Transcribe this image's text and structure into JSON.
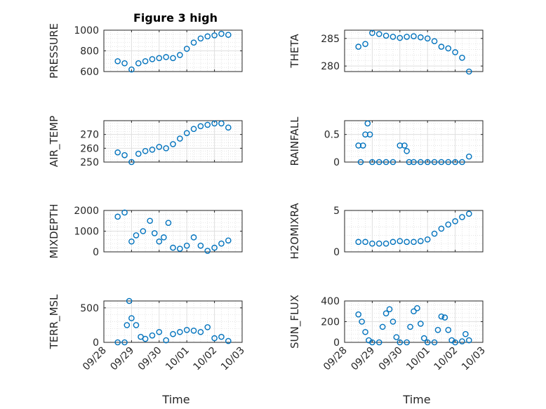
{
  "figure_title": "Figure 3 high",
  "marker_color": "#0072BD",
  "x_axis": {
    "label": "Time",
    "range": [
      "09/28",
      "10/03"
    ],
    "tick_labels": [
      "09/28",
      "09/29",
      "09/30",
      "10/01",
      "10/02",
      "10/03"
    ]
  },
  "chart_data": [
    {
      "type": "scatter",
      "panel": "pressure",
      "title": "Figure 3 high",
      "ylabel": "PRESSURE",
      "ylim": [
        600,
        1000
      ],
      "yticks": [
        600,
        800,
        1000
      ],
      "grid": true,
      "minor_grid": true,
      "x": [
        "09/28 12:00",
        "09/28 18:00",
        "09/29 00:00",
        "09/29 06:00",
        "09/29 12:00",
        "09/29 18:00",
        "09/30 00:00",
        "09/30 06:00",
        "09/30 12:00",
        "09/30 18:00",
        "10/01 00:00",
        "10/01 06:00",
        "10/01 12:00",
        "10/01 18:00",
        "10/02 00:00",
        "10/02 06:00",
        "10/02 12:00"
      ],
      "y": [
        700,
        680,
        620,
        680,
        700,
        720,
        730,
        740,
        730,
        760,
        820,
        880,
        920,
        940,
        950,
        965,
        955
      ]
    },
    {
      "type": "scatter",
      "panel": "theta",
      "ylabel": "THETA",
      "ylim": [
        279,
        286.5
      ],
      "yticks": [
        280,
        285
      ],
      "grid": true,
      "minor_grid": true,
      "x": [
        "09/28 12:00",
        "09/28 18:00",
        "09/29 00:00",
        "09/29 06:00",
        "09/29 12:00",
        "09/29 18:00",
        "09/30 00:00",
        "09/30 06:00",
        "09/30 12:00",
        "09/30 18:00",
        "10/01 00:00",
        "10/01 06:00",
        "10/01 12:00",
        "10/01 18:00",
        "10/02 00:00",
        "10/02 06:00",
        "10/02 12:00"
      ],
      "y": [
        283.5,
        284,
        286,
        285.8,
        285.5,
        285.3,
        285.1,
        285.3,
        285.4,
        285.2,
        285.0,
        284.5,
        283.5,
        283.2,
        282.5,
        281.5,
        279
      ]
    },
    {
      "type": "scatter",
      "panel": "air_temp",
      "ylabel": "AIR_TEMP",
      "ylim": [
        250,
        280
      ],
      "yticks": [
        250,
        260,
        270
      ],
      "grid": true,
      "minor_grid": true,
      "x": [
        "09/28 12:00",
        "09/28 18:00",
        "09/29 00:00",
        "09/29 06:00",
        "09/29 12:00",
        "09/29 18:00",
        "09/30 00:00",
        "09/30 06:00",
        "09/30 12:00",
        "09/30 18:00",
        "10/01 00:00",
        "10/01 06:00",
        "10/01 12:00",
        "10/01 18:00",
        "10/02 00:00",
        "10/02 06:00",
        "10/02 12:00"
      ],
      "y": [
        257,
        255,
        250,
        256,
        258,
        259,
        261,
        260,
        263,
        267,
        271,
        274,
        276,
        277,
        278,
        278,
        275
      ]
    },
    {
      "type": "scatter",
      "panel": "rainfall",
      "ylabel": "RAINFALL",
      "ylim": [
        0,
        0.75
      ],
      "yticks": [
        0,
        0.5
      ],
      "grid": true,
      "minor_grid": true,
      "x": [
        "09/28 12:00",
        "09/28 14:00",
        "09/28 16:00",
        "09/28 18:00",
        "09/28 20:00",
        "09/28 22:00",
        "09/29 00:00",
        "09/29 06:00",
        "09/29 12:00",
        "09/29 18:00",
        "09/30 00:00",
        "09/30 04:00",
        "09/30 06:00",
        "09/30 08:00",
        "09/30 12:00",
        "09/30 18:00",
        "10/01 00:00",
        "10/01 06:00",
        "10/01 12:00",
        "10/01 18:00",
        "10/02 00:00",
        "10/02 06:00",
        "10/02 12:00"
      ],
      "y": [
        0.3,
        0,
        0.3,
        0.5,
        0.7,
        0.5,
        0,
        0,
        0,
        0,
        0.3,
        0.3,
        0.2,
        0,
        0,
        0,
        0,
        0,
        0,
        0,
        0,
        0,
        0.1
      ]
    },
    {
      "type": "scatter",
      "panel": "mixdepth",
      "ylabel": "MIXDEPTH",
      "ylim": [
        0,
        2000
      ],
      "yticks": [
        0,
        1000,
        2000
      ],
      "grid": true,
      "minor_grid": true,
      "x": [
        "09/28 12:00",
        "09/28 18:00",
        "09/29 00:00",
        "09/29 04:00",
        "09/29 10:00",
        "09/29 16:00",
        "09/29 20:00",
        "09/30 00:00",
        "09/30 04:00",
        "09/30 08:00",
        "09/30 12:00",
        "09/30 18:00",
        "10/01 00:00",
        "10/01 06:00",
        "10/01 12:00",
        "10/01 18:00",
        "10/02 00:00",
        "10/02 06:00",
        "10/02 12:00"
      ],
      "y": [
        1700,
        1900,
        500,
        800,
        1000,
        1500,
        900,
        500,
        700,
        1400,
        200,
        150,
        300,
        700,
        300,
        50,
        200,
        400,
        550
      ]
    },
    {
      "type": "scatter",
      "panel": "h2omixra",
      "ylabel": "H2OMIXRA",
      "ylim": [
        0,
        5
      ],
      "yticks": [
        0,
        5
      ],
      "grid": true,
      "minor_grid": true,
      "x": [
        "09/28 12:00",
        "09/28 18:00",
        "09/29 00:00",
        "09/29 06:00",
        "09/29 12:00",
        "09/29 18:00",
        "09/30 00:00",
        "09/30 06:00",
        "09/30 12:00",
        "09/30 18:00",
        "10/01 00:00",
        "10/01 06:00",
        "10/01 12:00",
        "10/01 18:00",
        "10/02 00:00",
        "10/02 06:00",
        "10/02 12:00"
      ],
      "y": [
        1.2,
        1.2,
        1.0,
        1.0,
        1.0,
        1.2,
        1.3,
        1.2,
        1.2,
        1.3,
        1.5,
        2.2,
        2.8,
        3.3,
        3.7,
        4.2,
        4.6
      ]
    },
    {
      "type": "scatter",
      "panel": "terr_msl",
      "ylabel": "TERR_MSL",
      "ylim": [
        0,
        600
      ],
      "yticks": [
        0,
        500
      ],
      "grid": true,
      "minor_grid": true,
      "x": [
        "09/28 12:00",
        "09/28 18:00",
        "09/28 20:00",
        "09/28 22:00",
        "09/29 00:00",
        "09/29 04:00",
        "09/29 08:00",
        "09/29 12:00",
        "09/29 18:00",
        "09/30 00:00",
        "09/30 06:00",
        "09/30 12:00",
        "09/30 18:00",
        "10/01 00:00",
        "10/01 06:00",
        "10/01 12:00",
        "10/01 18:00",
        "10/02 00:00",
        "10/02 06:00",
        "10/02 12:00"
      ],
      "y": [
        0,
        0,
        250,
        600,
        350,
        250,
        80,
        50,
        100,
        150,
        30,
        120,
        150,
        180,
        170,
        150,
        220,
        60,
        80,
        20
      ]
    },
    {
      "type": "scatter",
      "panel": "sun_flux",
      "ylabel": "SUN_FLUX",
      "ylim": [
        0,
        400
      ],
      "yticks": [
        0,
        200,
        400
      ],
      "grid": true,
      "minor_grid": true,
      "x": [
        "09/28 12:00",
        "09/28 15:00",
        "09/28 18:00",
        "09/28 21:00",
        "09/29 00:00",
        "09/29 06:00",
        "09/29 09:00",
        "09/29 12:00",
        "09/29 15:00",
        "09/29 18:00",
        "09/29 21:00",
        "09/30 00:00",
        "09/30 06:00",
        "09/30 09:00",
        "09/30 12:00",
        "09/30 15:00",
        "09/30 18:00",
        "09/30 21:00",
        "10/01 00:00",
        "10/01 06:00",
        "10/01 09:00",
        "10/01 12:00",
        "10/01 15:00",
        "10/01 18:00",
        "10/01 21:00",
        "10/02 00:00",
        "10/02 06:00",
        "10/02 09:00",
        "10/02 12:00"
      ],
      "y": [
        270,
        200,
        100,
        20,
        0,
        0,
        150,
        280,
        320,
        200,
        50,
        0,
        0,
        150,
        300,
        330,
        180,
        40,
        0,
        0,
        120,
        250,
        240,
        120,
        20,
        0,
        10,
        80,
        20
      ]
    }
  ]
}
